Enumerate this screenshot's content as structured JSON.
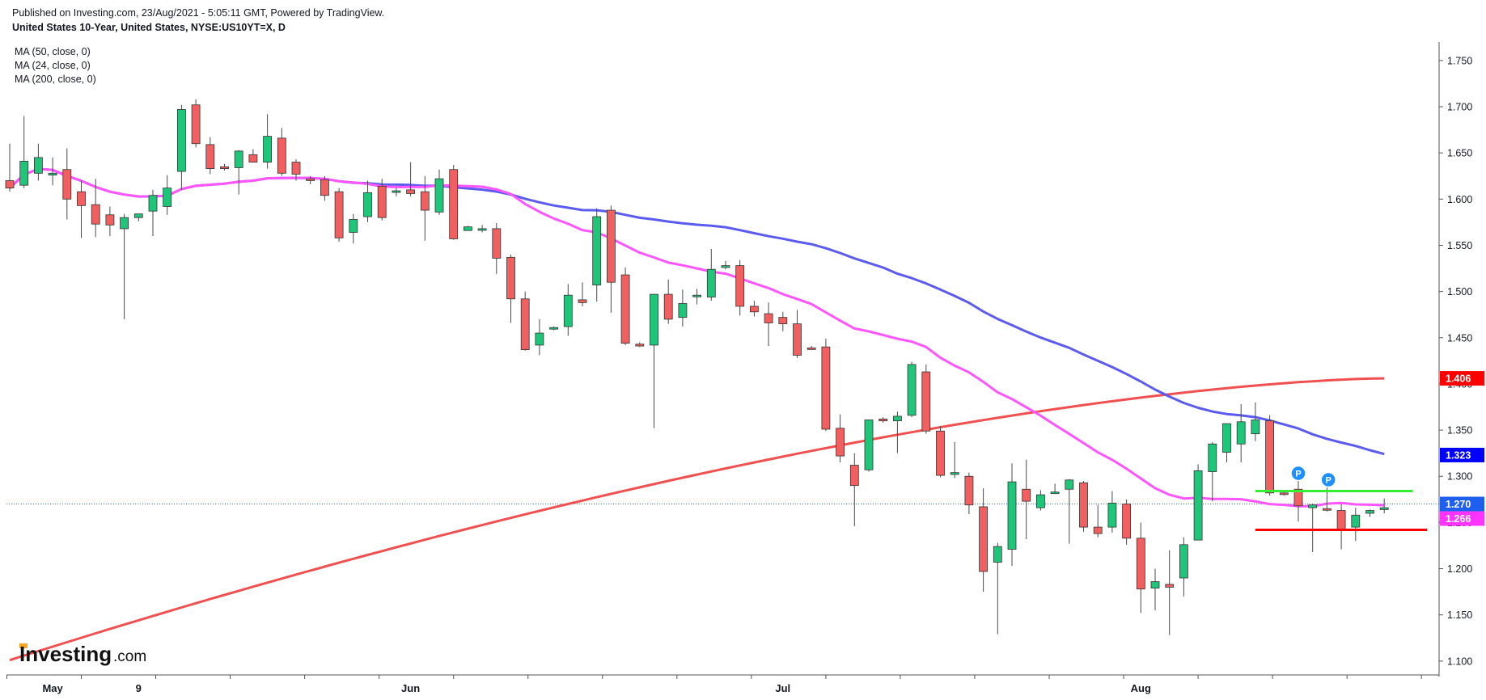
{
  "header": {
    "published": "Published on Investing.com, 23/Aug/2021 - 5:05:11 GMT, Powered by TradingView.",
    "symbol": "United States 10-Year, United States, NYSE:US10YT=X, D"
  },
  "legend": [
    {
      "label": "MA (50, close, 0)",
      "color": "#5b5bef",
      "period": 50
    },
    {
      "label": "MA (24, close, 0)",
      "color": "#ff55ff",
      "period": 24
    },
    {
      "label": "MA (200, close, 0)",
      "color": "#f05050",
      "period": 200
    }
  ],
  "logo": {
    "main": "Investing",
    "suffix": ".com"
  },
  "chart_data": {
    "type": "candlestick",
    "y_axis": {
      "min": 1.085,
      "max": 1.77,
      "position": "right",
      "ticks": [
        "1.100",
        "1.150",
        "1.200",
        "1.250",
        "1.300",
        "1.350",
        "1.400",
        "1.450",
        "1.500",
        "1.550",
        "1.600",
        "1.650",
        "1.700",
        "1.750"
      ]
    },
    "x_axis": {
      "labels": [
        {
          "text": "May",
          "bar": 3
        },
        {
          "text": "9",
          "bar": 9
        },
        {
          "text": "Jun",
          "bar": 28
        },
        {
          "text": "Jul",
          "bar": 54
        },
        {
          "text": "Aug",
          "bar": 79
        }
      ]
    },
    "price_labels": [
      {
        "value": 1.406,
        "label": "1.406",
        "bg": "#ff0000",
        "fg": "#ffffff"
      },
      {
        "value": 1.323,
        "label": "1.323",
        "bg": "#0000ff",
        "fg": "#ffffff"
      },
      {
        "value": 1.27,
        "label": "1.270",
        "bg": "#1e5ff0",
        "fg": "#ffffff"
      },
      {
        "value": 1.266,
        "label": "1.266",
        "bg": "#ff33ff",
        "fg": "#ffffff"
      }
    ],
    "current_price": 1.27,
    "up_color": "#1fc679",
    "down_color": "#f06060",
    "horizontal_levels": [
      {
        "value": 1.284,
        "color": "#33ee33",
        "from_bar": 87,
        "to_bar": 98
      },
      {
        "value": 1.242,
        "color": "#ff0000",
        "from_bar": 87,
        "to_bar": 99
      }
    ],
    "pins": [
      {
        "text": "P",
        "bar": 90,
        "value": 1.291
      },
      {
        "text": "P",
        "bar": 92.1,
        "value": 1.284
      }
    ],
    "candles": [
      [
        1.62,
        1.66,
        1.608,
        1.612
      ],
      [
        1.615,
        1.69,
        1.612,
        1.641
      ],
      [
        1.628,
        1.66,
        1.62,
        1.645
      ],
      [
        1.626,
        1.645,
        1.615,
        1.628
      ],
      [
        1.632,
        1.655,
        1.578,
        1.6
      ],
      [
        1.608,
        1.62,
        1.558,
        1.593
      ],
      [
        1.594,
        1.622,
        1.559,
        1.573
      ],
      [
        1.583,
        1.592,
        1.56,
        1.572
      ],
      [
        1.568,
        1.584,
        1.47,
        1.58
      ],
      [
        1.58,
        1.584,
        1.576,
        1.584
      ],
      [
        1.587,
        1.61,
        1.56,
        1.604
      ],
      [
        1.592,
        1.626,
        1.583,
        1.612
      ],
      [
        1.63,
        1.702,
        1.61,
        1.697
      ],
      [
        1.702,
        1.708,
        1.656,
        1.66
      ],
      [
        1.659,
        1.667,
        1.627,
        1.633
      ],
      [
        1.635,
        1.638,
        1.631,
        1.633
      ],
      [
        1.634,
        1.653,
        1.605,
        1.652
      ],
      [
        1.648,
        1.654,
        1.64,
        1.64
      ],
      [
        1.64,
        1.692,
        1.633,
        1.668
      ],
      [
        1.666,
        1.677,
        1.625,
        1.628
      ],
      [
        1.64,
        1.643,
        1.62,
        1.627
      ],
      [
        1.622,
        1.625,
        1.616,
        1.62
      ],
      [
        1.621,
        1.625,
        1.598,
        1.604
      ],
      [
        1.608,
        1.612,
        1.554,
        1.558
      ],
      [
        1.564,
        1.584,
        1.552,
        1.578
      ],
      [
        1.581,
        1.62,
        1.575,
        1.607
      ],
      [
        1.614,
        1.622,
        1.577,
        1.58
      ],
      [
        1.608,
        1.612,
        1.603,
        1.609
      ],
      [
        1.61,
        1.64,
        1.603,
        1.606
      ],
      [
        1.608,
        1.625,
        1.555,
        1.588
      ],
      [
        1.586,
        1.632,
        1.583,
        1.622
      ],
      [
        1.632,
        1.637,
        1.556,
        1.557
      ],
      [
        1.566,
        1.571,
        1.566,
        1.57
      ],
      [
        1.568,
        1.572,
        1.564,
        1.568
      ],
      [
        1.568,
        1.574,
        1.519,
        1.536
      ],
      [
        1.537,
        1.54,
        1.466,
        1.492
      ],
      [
        1.492,
        1.5,
        1.436,
        1.437
      ],
      [
        1.442,
        1.47,
        1.431,
        1.455
      ],
      [
        1.46,
        1.462,
        1.458,
        1.461
      ],
      [
        1.462,
        1.508,
        1.452,
        1.496
      ],
      [
        1.491,
        1.51,
        1.484,
        1.488
      ],
      [
        1.507,
        1.59,
        1.489,
        1.581
      ],
      [
        1.588,
        1.593,
        1.477,
        1.51
      ],
      [
        1.518,
        1.526,
        1.442,
        1.444
      ],
      [
        1.443,
        1.445,
        1.44,
        1.441
      ],
      [
        1.442,
        1.497,
        1.352,
        1.497
      ],
      [
        1.497,
        1.513,
        1.465,
        1.47
      ],
      [
        1.472,
        1.502,
        1.462,
        1.487
      ],
      [
        1.496,
        1.503,
        1.486,
        1.496
      ],
      [
        1.494,
        1.546,
        1.49,
        1.524
      ],
      [
        1.526,
        1.533,
        1.524,
        1.528
      ],
      [
        1.528,
        1.534,
        1.474,
        1.484
      ],
      [
        1.484,
        1.49,
        1.473,
        1.478
      ],
      [
        1.476,
        1.488,
        1.441,
        1.466
      ],
      [
        1.472,
        1.478,
        1.457,
        1.465
      ],
      [
        1.465,
        1.48,
        1.428,
        1.431
      ],
      [
        1.439,
        1.441,
        1.437,
        1.438
      ],
      [
        1.44,
        1.449,
        1.349,
        1.351
      ],
      [
        1.352,
        1.367,
        1.315,
        1.322
      ],
      [
        1.312,
        1.325,
        1.246,
        1.29
      ],
      [
        1.307,
        1.361,
        1.305,
        1.361
      ],
      [
        1.362,
        1.364,
        1.358,
        1.36
      ],
      [
        1.36,
        1.37,
        1.325,
        1.365
      ],
      [
        1.366,
        1.424,
        1.364,
        1.421
      ],
      [
        1.413,
        1.421,
        1.346,
        1.349
      ],
      [
        1.349,
        1.354,
        1.299,
        1.301
      ],
      [
        1.302,
        1.337,
        1.298,
        1.304
      ],
      [
        1.3,
        1.304,
        1.259,
        1.269
      ],
      [
        1.267,
        1.287,
        1.175,
        1.197
      ],
      [
        1.207,
        1.228,
        1.129,
        1.224
      ],
      [
        1.221,
        1.314,
        1.203,
        1.294
      ],
      [
        1.286,
        1.318,
        1.232,
        1.273
      ],
      [
        1.266,
        1.285,
        1.263,
        1.28
      ],
      [
        1.283,
        1.292,
        1.282,
        1.283
      ],
      [
        1.286,
        1.297,
        1.227,
        1.296
      ],
      [
        1.293,
        1.295,
        1.24,
        1.245
      ],
      [
        1.245,
        1.269,
        1.234,
        1.238
      ],
      [
        1.245,
        1.284,
        1.239,
        1.271
      ],
      [
        1.27,
        1.275,
        1.226,
        1.233
      ],
      [
        1.233,
        1.25,
        1.152,
        1.178
      ],
      [
        1.179,
        1.2,
        1.155,
        1.186
      ],
      [
        1.183,
        1.22,
        1.128,
        1.18
      ],
      [
        1.19,
        1.234,
        1.17,
        1.226
      ],
      [
        1.231,
        1.313,
        1.231,
        1.306
      ],
      [
        1.305,
        1.337,
        1.273,
        1.335
      ],
      [
        1.326,
        1.357,
        1.315,
        1.357
      ],
      [
        1.335,
        1.378,
        1.315,
        1.359
      ],
      [
        1.346,
        1.38,
        1.338,
        1.361
      ],
      [
        1.36,
        1.366,
        1.279,
        1.282
      ],
      [
        1.282,
        1.284,
        1.279,
        1.281
      ],
      [
        1.286,
        1.303,
        1.251,
        1.268
      ],
      [
        1.266,
        1.27,
        1.218,
        1.269
      ],
      [
        1.265,
        1.298,
        1.262,
        1.264
      ],
      [
        1.263,
        1.27,
        1.221,
        1.242
      ],
      [
        1.245,
        1.266,
        1.23,
        1.258
      ],
      [
        1.26,
        1.264,
        1.256,
        1.263
      ],
      [
        1.264,
        1.276,
        1.26,
        1.266
      ]
    ]
  }
}
